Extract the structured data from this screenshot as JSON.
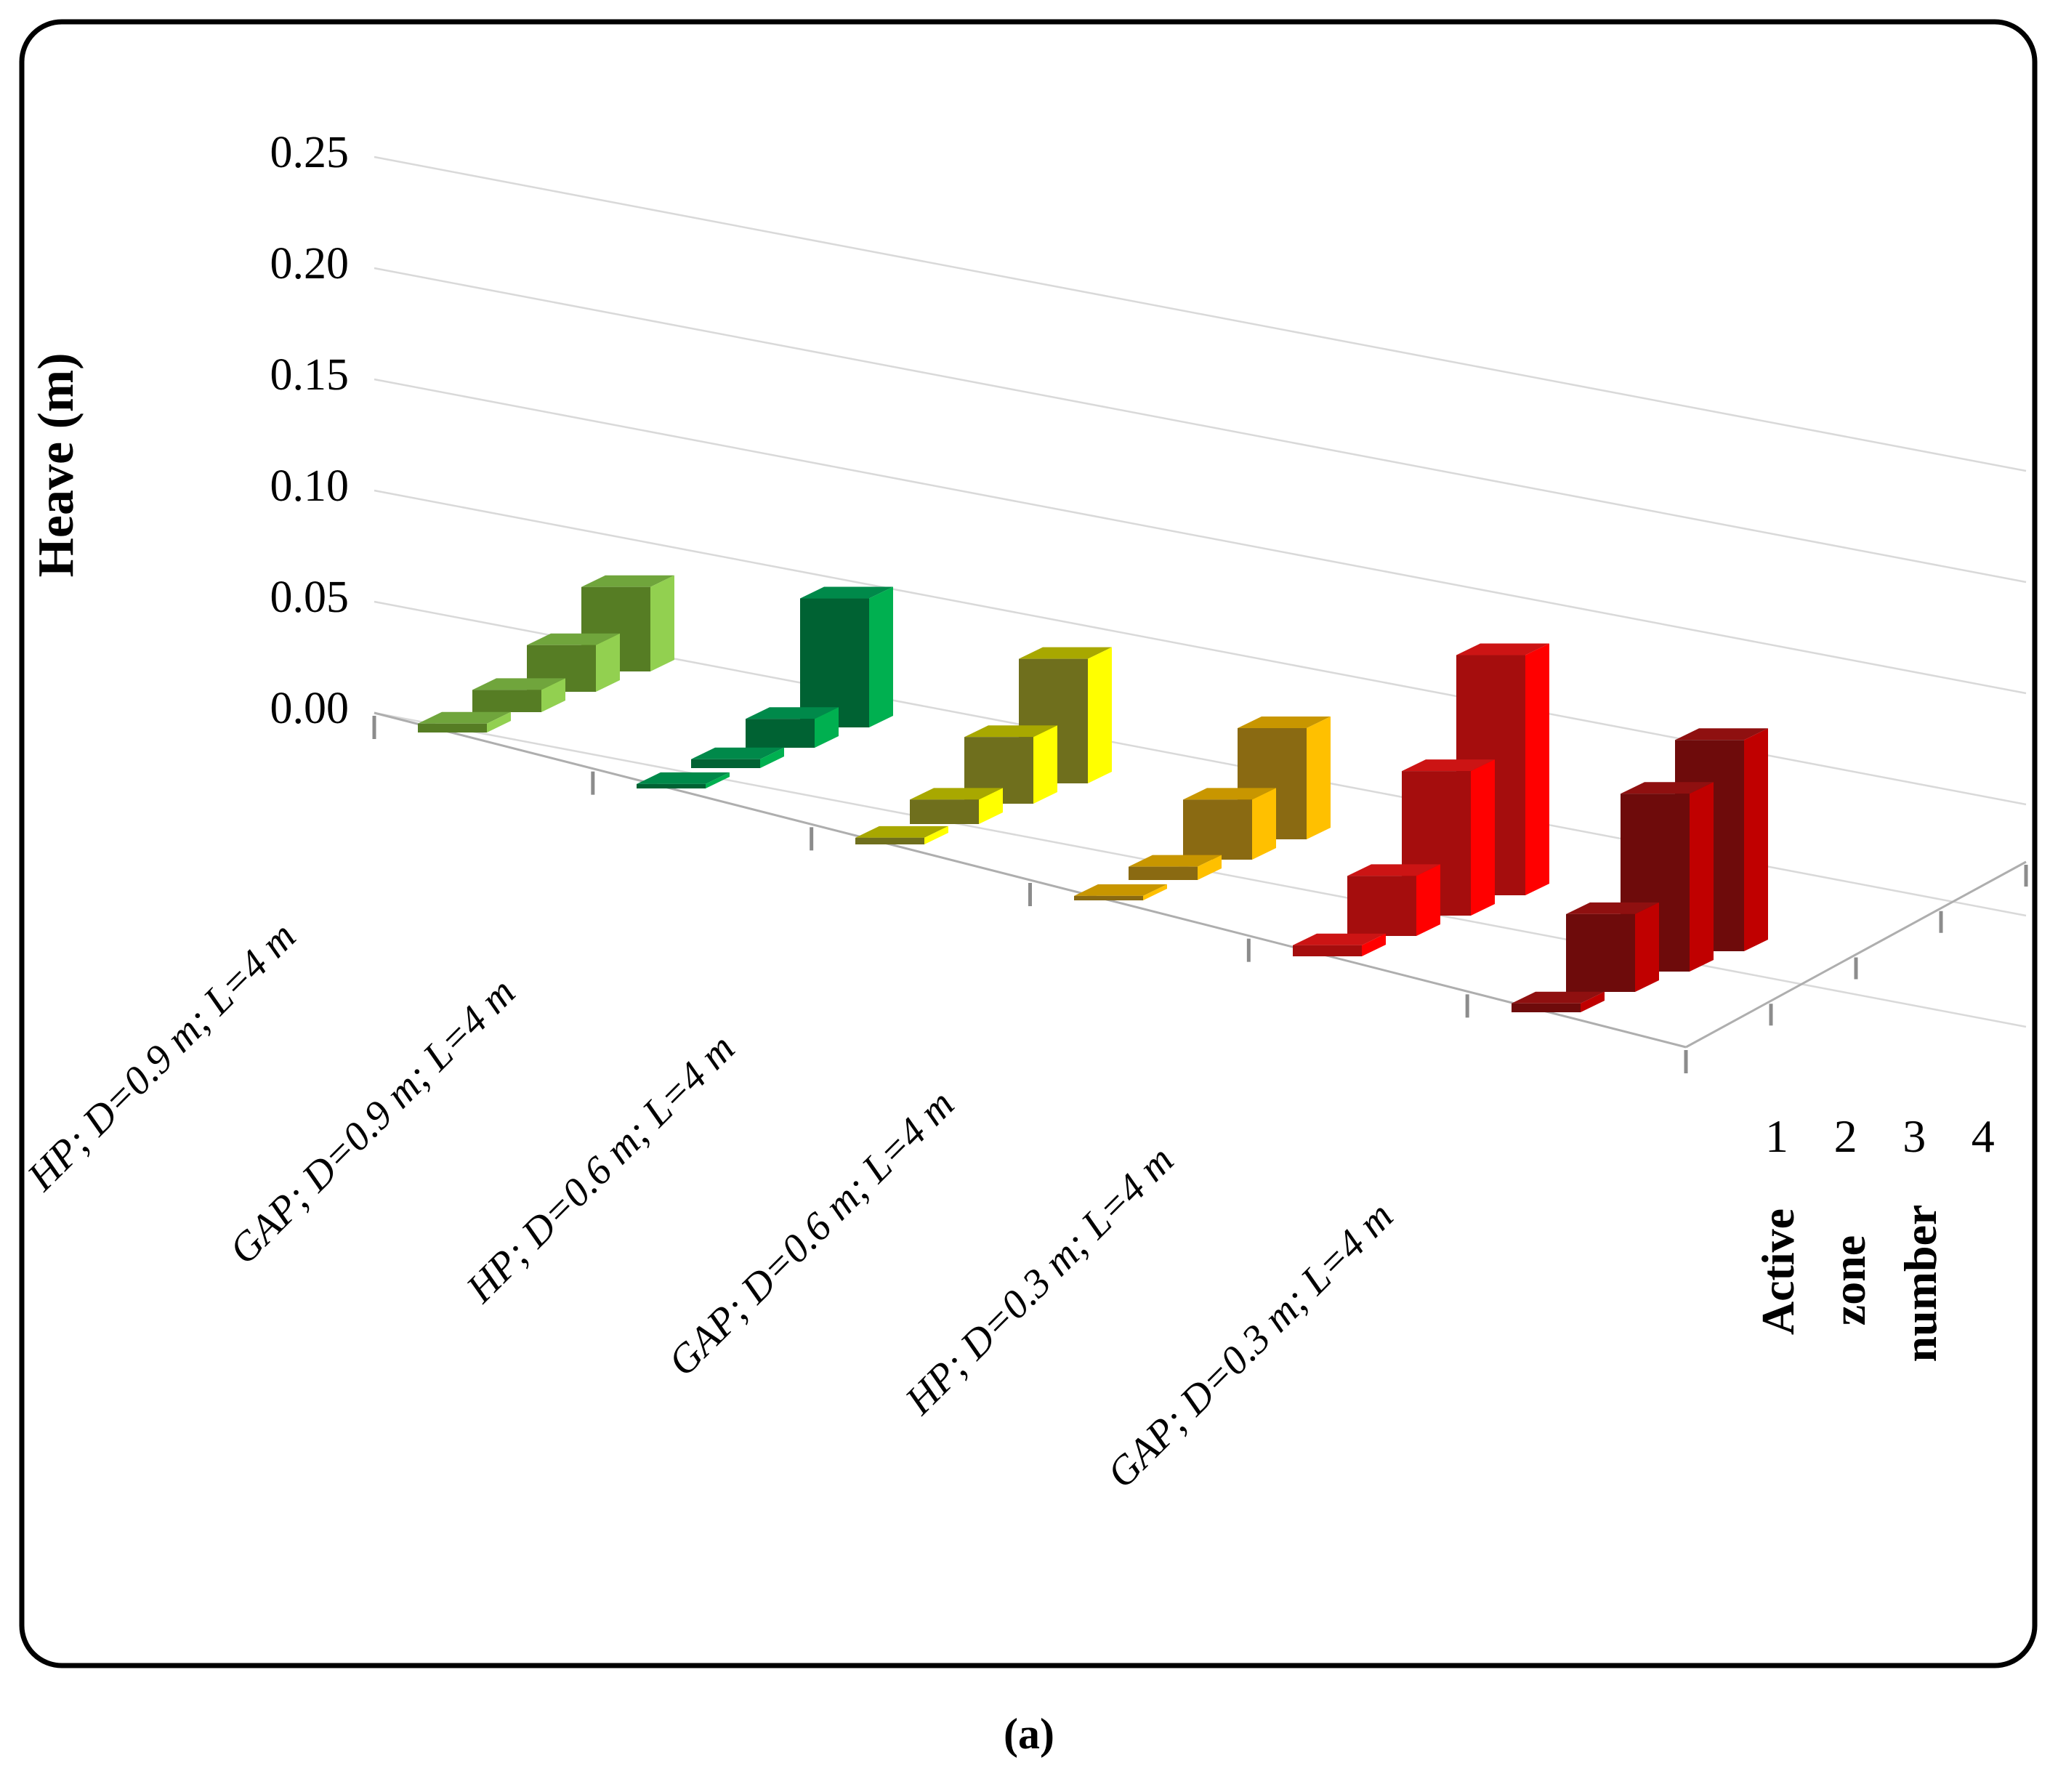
{
  "caption": "(a)",
  "chart_data": {
    "type": "bar",
    "projection": "3d-column",
    "title": "",
    "ylabel": "Heave (m)",
    "ylim": [
      0,
      0.25
    ],
    "y_ticks": [
      "0.25",
      "0.20",
      "0.15",
      "0.10",
      "0.05",
      "0.00"
    ],
    "y_tick_values": [
      0.25,
      0.2,
      0.15,
      0.1,
      0.05,
      0.0
    ],
    "depth_axis_title_words": [
      "Active",
      "zone",
      "number"
    ],
    "depth_axis_title": "Active zone number",
    "zones": [
      "1",
      "2",
      "3",
      "4"
    ],
    "grid": "on",
    "legend": "none",
    "categories": [
      "HP; D=0.9 m; L=4 m",
      "GAP; D=0.9 m; L=4 m",
      "HP; D=0.6 m; L=4 m",
      "GAP; D=0.6 m; L=4 m",
      "HP; D=0.3 m; L=4 m",
      "GAP; D=0.3 m; L=4 m"
    ],
    "series": [
      {
        "name": "HP; D=0.9 m; L=4 m",
        "key": "hp-d09",
        "color_front": "#567d24",
        "color_side": "#92d050",
        "color_top": "#70a53c",
        "values": [
          0.004,
          0.01,
          0.021,
          0.038
        ]
      },
      {
        "name": "GAP; D=0.9 m; L=4 m",
        "key": "gap-d09",
        "color_front": "#006233",
        "color_side": "#00b050",
        "color_top": "#00894a",
        "values": [
          0.002,
          0.004,
          0.013,
          0.058
        ]
      },
      {
        "name": "HP; D=0.6 m; L=4 m",
        "key": "hp-d06",
        "color_front": "#6f6f1d",
        "color_side": "#ffff00",
        "color_top": "#a8a800",
        "values": [
          0.003,
          0.011,
          0.03,
          0.056
        ]
      },
      {
        "name": "GAP; D=0.6 m; L=4 m",
        "key": "gap-d06",
        "color_front": "#8a6a12",
        "color_side": "#ffc000",
        "color_top": "#c89600",
        "values": [
          0.002,
          0.006,
          0.027,
          0.05
        ]
      },
      {
        "name": "HP; D=0.3 m; L=4 m",
        "key": "hp-d03",
        "color_front": "#a50d0d",
        "color_side": "#ff0000",
        "color_top": "#cc1414",
        "values": [
          0.005,
          0.027,
          0.065,
          0.108
        ]
      },
      {
        "name": "GAP; D=0.3 m; L=4 m",
        "key": "gap-d03",
        "color_front": "#6e0b0b",
        "color_side": "#c00000",
        "color_top": "#8f1010",
        "values": [
          0.004,
          0.035,
          0.08,
          0.095
        ]
      }
    ],
    "colors_meta": {
      "gridline": "#d9d9d9",
      "floor_edge": "#aeaeae",
      "tick": "#8c8c8c",
      "text": "#000000",
      "border": "#000000"
    }
  }
}
